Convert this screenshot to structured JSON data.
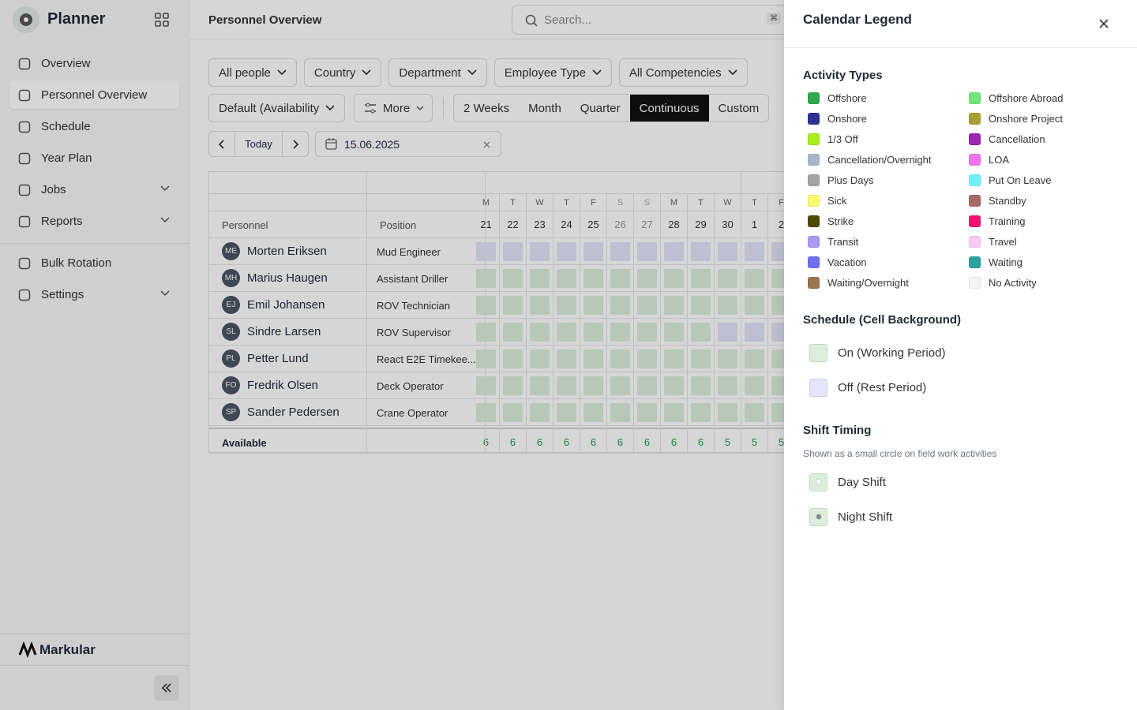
{
  "sidebar": {
    "brand": "Planner",
    "nav_groups": [
      [
        {
          "label": "Overview",
          "chevron": false
        },
        {
          "label": "Personnel Overview",
          "chevron": false,
          "active": true
        },
        {
          "label": "Schedule",
          "chevron": false
        },
        {
          "label": "Year Plan",
          "chevron": false
        },
        {
          "label": "Jobs",
          "chevron": true
        },
        {
          "label": "Reports",
          "chevron": true
        }
      ],
      [
        {
          "label": "Bulk Rotation",
          "chevron": false
        },
        {
          "label": "Settings",
          "chevron": true
        }
      ]
    ],
    "footer_brand": "Markular"
  },
  "header": {
    "title": "Personnel Overview",
    "search_placeholder": "Search...",
    "shortcut": "⌘"
  },
  "filters": [
    "All people",
    "Country",
    "Department",
    "Employee Type",
    "All Competencies"
  ],
  "sort": "Default (Availability",
  "more": "More",
  "views": [
    "2 Weeks",
    "Month",
    "Quarter",
    "Continuous",
    "Custom"
  ],
  "active_view": 3,
  "date_nav": {
    "today": "Today",
    "date": "15.06.2025"
  },
  "table": {
    "headers": [
      "Personnel",
      "Position"
    ],
    "weekdays": [
      "M",
      "T",
      "W",
      "T",
      "F",
      "S",
      "S",
      "M",
      "T",
      "W",
      "T",
      "F"
    ],
    "weekend": [
      false,
      false,
      false,
      false,
      false,
      true,
      true,
      false,
      false,
      false,
      false,
      false
    ],
    "dates": [
      21,
      22,
      23,
      24,
      25,
      26,
      27,
      28,
      29,
      30,
      1,
      2
    ],
    "rows": [
      {
        "initials": "ME",
        "name": "Morten Eriksen",
        "position": "Mud Engineer",
        "cells": [
          "off",
          "off",
          "off",
          "off",
          "off",
          "off",
          "off",
          "off",
          "off",
          "off",
          "off",
          "off"
        ]
      },
      {
        "initials": "MH",
        "name": "Marius Haugen",
        "position": "Assistant Driller",
        "cells": [
          "on",
          "on",
          "on",
          "on",
          "on",
          "on",
          "on",
          "on",
          "on",
          "on",
          "on",
          "on"
        ]
      },
      {
        "initials": "EJ",
        "name": "Emil Johansen",
        "position": "ROV Technician",
        "cells": [
          "on",
          "on",
          "on",
          "on",
          "on",
          "on",
          "on",
          "on",
          "on",
          "on",
          "on",
          "on"
        ]
      },
      {
        "initials": "SL",
        "name": "Sindre Larsen",
        "position": "ROV Supervisor",
        "cells": [
          "on",
          "on",
          "on",
          "on",
          "on",
          "on",
          "on",
          "on",
          "on",
          "off",
          "off",
          "off"
        ]
      },
      {
        "initials": "PL",
        "name": "Petter Lund",
        "position": "React E2E Timekee...",
        "cells": [
          "on",
          "on",
          "on",
          "on",
          "on",
          "on",
          "on",
          "on",
          "on",
          "on",
          "on",
          "on"
        ]
      },
      {
        "initials": "FO",
        "name": "Fredrik Olsen",
        "position": "Deck Operator",
        "cells": [
          "on",
          "on",
          "on",
          "on",
          "on",
          "on",
          "on",
          "on",
          "on",
          "on",
          "on",
          "on"
        ]
      },
      {
        "initials": "SP",
        "name": "Sander Pedersen",
        "position": "Crane Operator",
        "cells": [
          "on",
          "on",
          "on",
          "on",
          "on",
          "on",
          "on",
          "on",
          "on",
          "on",
          "on",
          "on"
        ]
      }
    ],
    "available_label": "Available",
    "available": [
      6,
      6,
      6,
      6,
      6,
      6,
      6,
      6,
      6,
      5,
      5,
      5
    ]
  },
  "legend": {
    "title": "Calendar Legend",
    "activity": {
      "title": "Activity Types",
      "items": [
        {
          "name": "Offshore",
          "color": "#2fa84f"
        },
        {
          "name": "Offshore Abroad",
          "color": "#6ee67a"
        },
        {
          "name": "Onshore",
          "color": "#2e3192"
        },
        {
          "name": "Onshore Project",
          "color": "#a8a032"
        },
        {
          "name": "1/3 Off",
          "color": "#a6ef1a"
        },
        {
          "name": "Cancellation",
          "color": "#9c27b0"
        },
        {
          "name": "Cancellation/Overnight",
          "color": "#a9b8c8"
        },
        {
          "name": "LOA",
          "color": "#f472f0"
        },
        {
          "name": "Plus Days",
          "color": "#a3a3a3"
        },
        {
          "name": "Put On Leave",
          "color": "#6ff2f7"
        },
        {
          "name": "Sick",
          "color": "#fafa70"
        },
        {
          "name": "Standby",
          "color": "#a86868"
        },
        {
          "name": "Strike",
          "color": "#4a4a00"
        },
        {
          "name": "Training",
          "color": "#f0136f"
        },
        {
          "name": "Transit",
          "color": "#a99af0"
        },
        {
          "name": "Travel",
          "color": "#f9c9f5"
        },
        {
          "name": "Vacation",
          "color": "#6f6ff0"
        },
        {
          "name": "Waiting",
          "color": "#2aa39d"
        },
        {
          "name": "Waiting/Overnight",
          "color": "#9c7450"
        },
        {
          "name": "No Activity",
          "color": "#f3f4f6"
        }
      ]
    },
    "schedule": {
      "title": "Schedule (Cell Background)",
      "items": [
        {
          "name": "On (Working Period)",
          "color": "#dcefdc",
          "key": "on"
        },
        {
          "name": "Off (Rest Period)",
          "color": "#e4e4fb",
          "key": "off"
        }
      ]
    },
    "shift": {
      "title": "Shift Timing",
      "subtitle": "Shown as a small circle on field work activities",
      "items": [
        {
          "name": "Day Shift",
          "dot": "#ffffff"
        },
        {
          "name": "Night Shift",
          "dot": "#888888"
        }
      ]
    }
  }
}
